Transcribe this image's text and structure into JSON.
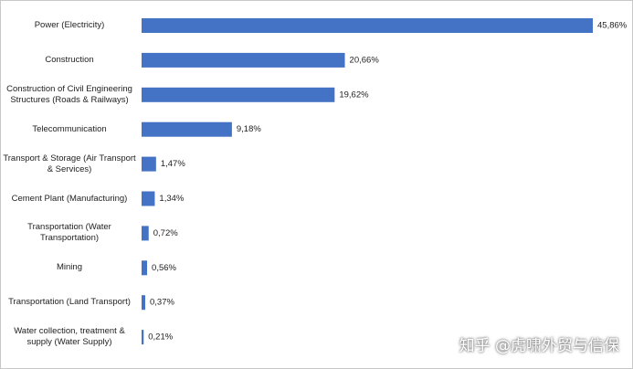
{
  "chart_data": {
    "type": "bar",
    "orientation": "horizontal",
    "categories": [
      "Power (Electricity)",
      "Construction",
      "Construction of Civil Engineering Structures (Roads & Railways)",
      "Telecommunication",
      "Transport & Storage (Air Transport & Services)",
      "Cement Plant (Manufacturing)",
      "Transportation (Water Transportation)",
      "Mining",
      "Transportation (Land Transport)",
      "Water collection, treatment & supply (Water Supply)"
    ],
    "values": [
      45.86,
      20.66,
      19.62,
      9.18,
      1.47,
      1.34,
      0.72,
      0.56,
      0.37,
      0.21
    ],
    "value_labels": [
      "45,86%",
      "20,66%",
      "19,62%",
      "9,18%",
      "1,47%",
      "1,34%",
      "0,72%",
      "0,56%",
      "0,37%",
      "0,21%"
    ],
    "color": "#4472c4",
    "watermark": "知乎 @虎啸外贸与信保"
  }
}
